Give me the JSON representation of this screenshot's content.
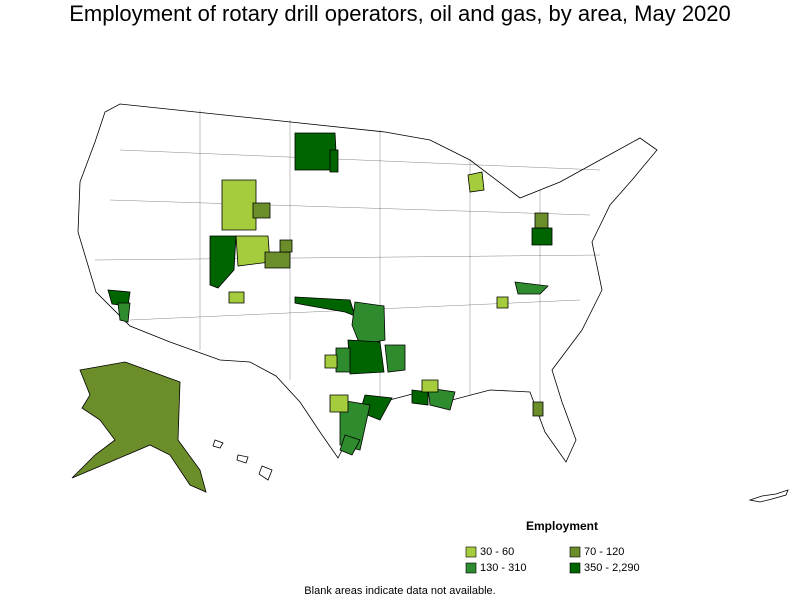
{
  "title": "Employment of rotary drill operators, oil and gas, by area, May 2020",
  "legend": {
    "title": "Employment",
    "items": [
      {
        "label": "30 - 60",
        "color": "#a4cc3c"
      },
      {
        "label": "70 - 120",
        "color": "#6b8e2a"
      },
      {
        "label": "130 - 310",
        "color": "#2e8b2e"
      },
      {
        "label": "350 - 2,290",
        "color": "#006400"
      }
    ]
  },
  "note": "Blank areas indicate data not available."
}
